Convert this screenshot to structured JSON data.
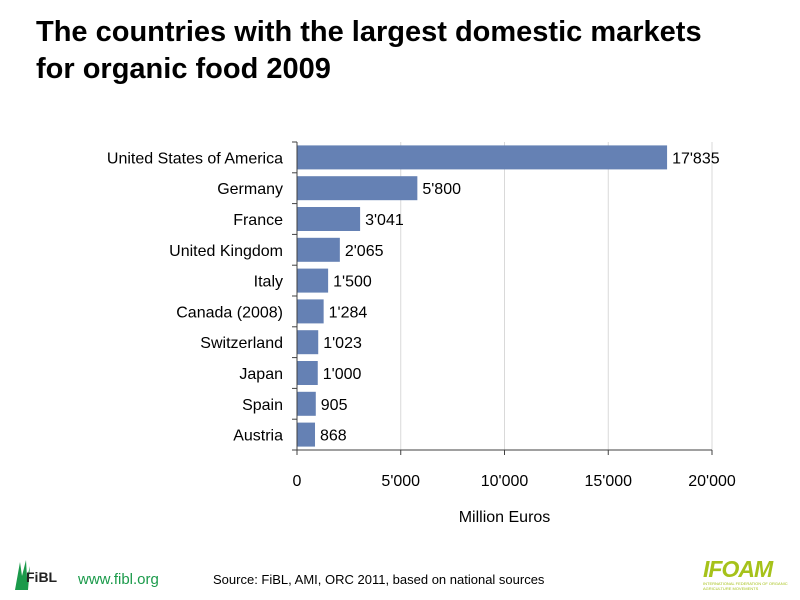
{
  "title": "The countries with the largest domestic markets for organic food  2009",
  "footer": {
    "fibl_logo_text": "FiBL",
    "url": "www.fibl.org",
    "source": "Source: FiBL, AMI,  ORC  2011, based on national sources",
    "ifoam_logo_text": "IFOAM",
    "ifoam_subtext": "INTERNATIONAL FEDERATION OF ORGANIC AGRICULTURE MOVEMENTS"
  },
  "colors": {
    "bar": "#6581b4",
    "gridline": "#d9d9d9",
    "axis": "#404040",
    "fibl_green": "#1a9a4a",
    "ifoam_green": "#a6c21a"
  },
  "chart_data": {
    "type": "bar",
    "orientation": "horizontal",
    "title": "The countries with the largest domestic markets for organic food  2009",
    "xlabel": "Million Euros",
    "ylabel": "",
    "categories": [
      "United States of America",
      "Germany",
      "France",
      "United Kingdom",
      "Italy",
      "Canada (2008)",
      "Switzerland",
      "Japan",
      "Spain",
      "Austria"
    ],
    "values": [
      17835,
      5800,
      3041,
      2065,
      1500,
      1284,
      1023,
      1000,
      905,
      868
    ],
    "value_labels": [
      "17'835",
      "5'800",
      "3'041",
      "2'065",
      "1'500",
      "1'284",
      "1'023",
      "1'000",
      "905",
      "868"
    ],
    "xlim": [
      0,
      20000
    ],
    "xticks": [
      0,
      5000,
      10000,
      15000,
      20000
    ],
    "xtick_labels": [
      "0",
      "5'000",
      "10'000",
      "15'000",
      "20'000"
    ],
    "grid": "vertical",
    "legend": "none"
  }
}
